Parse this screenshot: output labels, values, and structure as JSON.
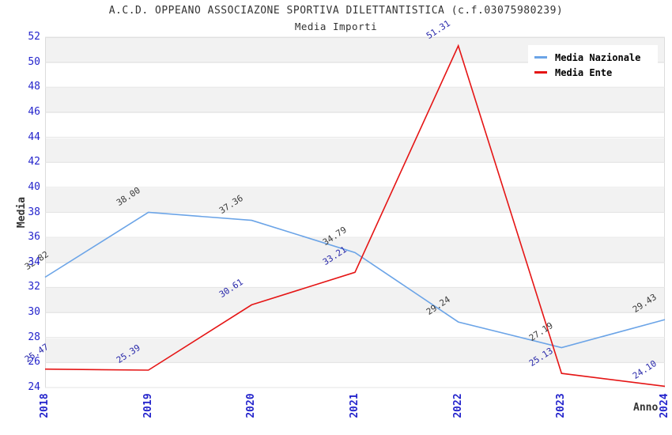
{
  "header": {
    "title": "A.C.D. OPPEANO ASSOCIAZONE SPORTIVA DILETTANTISTICA (c.f.03075980239)",
    "subtitle": "Media Importi"
  },
  "axes": {
    "x_title": "Anno",
    "y_title": "Media",
    "tick_color": "#2424cc"
  },
  "legend": {
    "items": [
      {
        "label": "Media Nazionale",
        "color": "#6ba4e7"
      },
      {
        "label": "Media Ente",
        "color": "#e51515"
      }
    ]
  },
  "chart_data": {
    "type": "line",
    "title": "A.C.D. OPPEANO ASSOCIAZONE SPORTIVA DILETTANTISTICA (c.f.03075980239)",
    "subtitle": "Media Importi",
    "xlabel": "Anno",
    "ylabel": "Media",
    "categories": [
      "2018",
      "2019",
      "2020",
      "2021",
      "2022",
      "2023",
      "2024"
    ],
    "series": [
      {
        "name": "Media Nazionale",
        "color": "#6ba4e7",
        "label_color": "#3a3a3a",
        "values": [
          32.82,
          38.0,
          37.36,
          34.79,
          29.24,
          27.19,
          29.43
        ]
      },
      {
        "name": "Media Ente",
        "color": "#e51515",
        "label_color": "#2828aa",
        "values": [
          25.47,
          25.39,
          30.61,
          33.21,
          51.31,
          25.13,
          24.1
        ]
      }
    ],
    "ylim": [
      24,
      52
    ],
    "yticks": [
      24,
      26,
      28,
      30,
      32,
      34,
      36,
      38,
      40,
      42,
      44,
      46,
      48,
      50,
      52
    ],
    "band_colors": [
      "#f2f2f2",
      "#ffffff"
    ],
    "gridline_color": "#e3e3e3",
    "grid": true,
    "legend_position": "top-right"
  }
}
